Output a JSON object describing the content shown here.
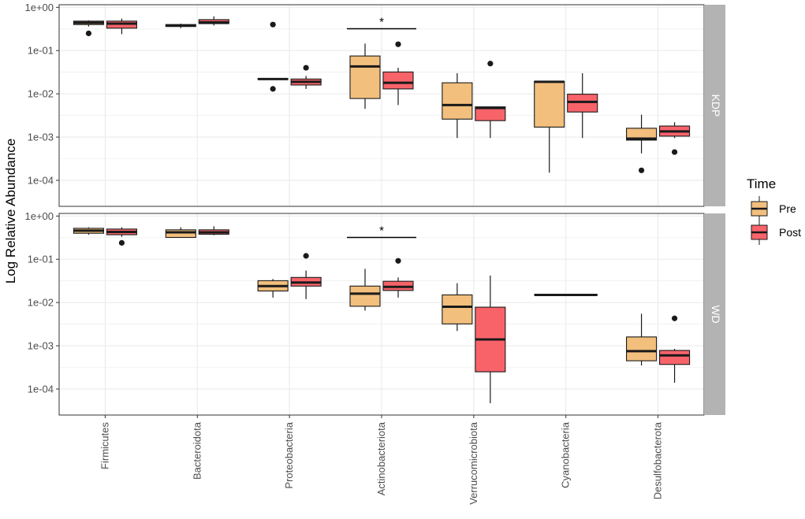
{
  "chart_data": {
    "type": "boxplot",
    "title": "",
    "xlabel": "",
    "ylabel": "Log Relative Abundance",
    "y_scale": "log10",
    "y_ticks": [
      1,
      0.1,
      0.01,
      0.001,
      0.0001
    ],
    "y_tick_labels": [
      "1e+00",
      "1e-01",
      "1e-02",
      "1e-03",
      "1e-04"
    ],
    "categories": [
      "Firmicutes",
      "Bacteroidota",
      "Proteobacteria",
      "Actinobacteriota",
      "Verrucomicrobiota",
      "Cyanobacteria",
      "Desulfobacterota"
    ],
    "legend": {
      "title": "Time",
      "position": "right",
      "entries": [
        {
          "name": "Pre",
          "color": "#F2BF7D"
        },
        {
          "name": "Post",
          "color": "#F8636A"
        }
      ]
    },
    "panels": [
      {
        "label": "KDP",
        "ylim": [
          2.5e-05,
          1.15
        ],
        "significance": [
          {
            "category": "Actinobacteriota",
            "label": "*",
            "y": 0.32
          }
        ],
        "series": [
          {
            "name": "Pre",
            "boxes": [
              {
                "category": "Firmicutes",
                "min": 0.36,
                "q1": 0.4,
                "median": 0.44,
                "q3": 0.48,
                "max": 0.5,
                "outliers": [
                  0.25
                ]
              },
              {
                "category": "Bacteroidota",
                "min": 0.33,
                "q1": 0.36,
                "median": 0.38,
                "q3": 0.4,
                "max": 0.42,
                "outliers": []
              },
              {
                "category": "Proteobacteria",
                "min": 0.021,
                "q1": 0.0215,
                "median": 0.022,
                "q3": 0.0225,
                "max": 0.023,
                "outliers": [
                  0.4,
                  0.013
                ]
              },
              {
                "category": "Actinobacteriota",
                "min": 0.0045,
                "q1": 0.0078,
                "median": 0.043,
                "q3": 0.075,
                "max": 0.145,
                "outliers": []
              },
              {
                "category": "Verrucomicrobiota",
                "min": 0.00095,
                "q1": 0.0026,
                "median": 0.0055,
                "q3": 0.018,
                "max": 0.03,
                "outliers": []
              },
              {
                "category": "Cyanobacteria",
                "min": 0.00015,
                "q1": 0.0017,
                "median": 0.019,
                "q3": 0.0195,
                "max": 0.02,
                "outliers": []
              },
              {
                "category": "Desulfobacterota",
                "min": 0.00042,
                "q1": 0.00085,
                "median": 0.00092,
                "q3": 0.0016,
                "max": 0.0033,
                "outliers": [
                  0.00017
                ]
              }
            ]
          },
          {
            "name": "Post",
            "boxes": [
              {
                "category": "Firmicutes",
                "min": 0.24,
                "q1": 0.33,
                "median": 0.42,
                "q3": 0.48,
                "max": 0.55,
                "outliers": []
              },
              {
                "category": "Bacteroidota",
                "min": 0.38,
                "q1": 0.42,
                "median": 0.45,
                "q3": 0.52,
                "max": 0.62,
                "outliers": []
              },
              {
                "category": "Proteobacteria",
                "min": 0.013,
                "q1": 0.016,
                "median": 0.019,
                "q3": 0.022,
                "max": 0.026,
                "outliers": [
                  0.04
                ]
              },
              {
                "category": "Actinobacteriota",
                "min": 0.0055,
                "q1": 0.013,
                "median": 0.018,
                "q3": 0.032,
                "max": 0.04,
                "outliers": [
                  0.14
                ]
              },
              {
                "category": "Verrucomicrobiota",
                "min": 0.00095,
                "q1": 0.0024,
                "median": 0.0047,
                "q3": 0.005,
                "max": 0.005,
                "outliers": [
                  0.05
                ]
              },
              {
                "category": "Cyanobacteria",
                "min": 0.00095,
                "q1": 0.0038,
                "median": 0.0065,
                "q3": 0.0098,
                "max": 0.03,
                "outliers": []
              },
              {
                "category": "Desulfobacterota",
                "min": 0.00095,
                "q1": 0.00105,
                "median": 0.00135,
                "q3": 0.0018,
                "max": 0.0022,
                "outliers": [
                  0.00045
                ]
              }
            ]
          }
        ]
      },
      {
        "label": "WD",
        "ylim": [
          2.5e-05,
          1.15
        ],
        "significance": [
          {
            "category": "Actinobacteriota",
            "label": "*",
            "y": 0.32
          }
        ],
        "series": [
          {
            "name": "Pre",
            "boxes": [
              {
                "category": "Firmicutes",
                "min": 0.37,
                "q1": 0.4,
                "median": 0.46,
                "q3": 0.52,
                "max": 0.55,
                "outliers": []
              },
              {
                "category": "Bacteroidota",
                "min": 0.32,
                "q1": 0.32,
                "median": 0.42,
                "q3": 0.48,
                "max": 0.55,
                "outliers": []
              },
              {
                "category": "Proteobacteria",
                "min": 0.013,
                "q1": 0.0185,
                "median": 0.024,
                "q3": 0.032,
                "max": 0.035,
                "outliers": []
              },
              {
                "category": "Actinobacteriota",
                "min": 0.0065,
                "q1": 0.0082,
                "median": 0.016,
                "q3": 0.024,
                "max": 0.06,
                "outliers": []
              },
              {
                "category": "Verrucomicrobiota",
                "min": 0.0022,
                "q1": 0.0032,
                "median": 0.008,
                "q3": 0.015,
                "max": 0.028,
                "outliers": []
              },
              {
                "category": "Cyanobacteria",
                "min": 0.015,
                "q1": 0.015,
                "median": 0.015,
                "q3": 0.015,
                "max": 0.015,
                "outliers": []
              },
              {
                "category": "Desulfobacterota",
                "min": 0.00035,
                "q1": 0.00045,
                "median": 0.00075,
                "q3": 0.0016,
                "max": 0.0055,
                "outliers": []
              }
            ]
          },
          {
            "name": "Post",
            "boxes": [
              {
                "category": "Firmicutes",
                "min": 0.33,
                "q1": 0.37,
                "median": 0.43,
                "q3": 0.5,
                "max": 0.55,
                "outliers": [
                  0.24
                ]
              },
              {
                "category": "Bacteroidota",
                "min": 0.36,
                "q1": 0.38,
                "median": 0.42,
                "q3": 0.48,
                "max": 0.58,
                "outliers": []
              },
              {
                "category": "Proteobacteria",
                "min": 0.012,
                "q1": 0.024,
                "median": 0.029,
                "q3": 0.038,
                "max": 0.055,
                "outliers": [
                  0.12
                ]
              },
              {
                "category": "Actinobacteriota",
                "min": 0.013,
                "q1": 0.019,
                "median": 0.023,
                "q3": 0.031,
                "max": 0.038,
                "outliers": [
                  0.092
                ]
              },
              {
                "category": "Verrucomicrobiota",
                "min": 4.7e-05,
                "q1": 0.00025,
                "median": 0.0014,
                "q3": 0.0078,
                "max": 0.042,
                "outliers": []
              },
              {
                "category": "Desulfobacterota",
                "min": 0.00014,
                "q1": 0.00037,
                "median": 0.0006,
                "q3": 0.00078,
                "max": 0.00085,
                "outliers": [
                  0.0043
                ]
              }
            ]
          }
        ]
      }
    ]
  },
  "style": {
    "grid_color": "#ebebeb",
    "panel_border": "#333333",
    "strip_fill": "#b3b3b3",
    "box_stroke": "#1a1a1a"
  }
}
